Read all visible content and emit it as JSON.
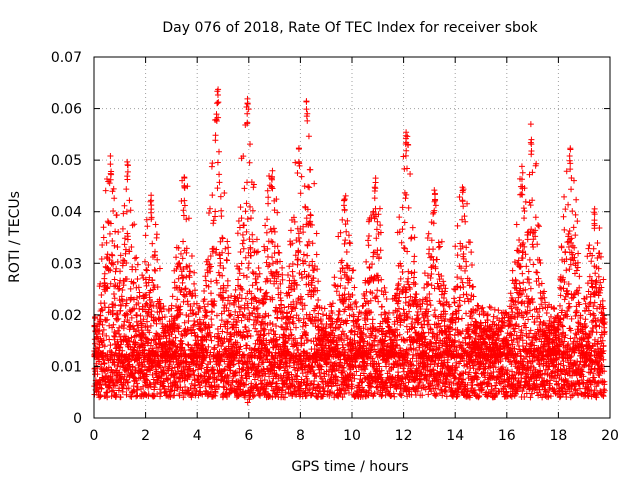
{
  "chart_data": {
    "type": "scatter",
    "title": "Day 076 of 2018, Rate Of TEC Index for receiver sbok",
    "xlabel": "GPS time / hours",
    "ylabel": "ROTI / TECUs",
    "xlim": [
      0,
      20
    ],
    "ylim": [
      0,
      0.07
    ],
    "x_ticks": [
      0,
      2,
      4,
      6,
      8,
      10,
      12,
      14,
      16,
      18,
      20
    ],
    "x_tick_labels": [
      "0",
      "2",
      "4",
      "6",
      "8",
      "10",
      "12",
      "14",
      "16",
      "18",
      "20"
    ],
    "y_ticks": [
      0,
      0.01,
      0.02,
      0.03,
      0.04,
      0.05,
      0.06,
      0.07
    ],
    "y_tick_labels": [
      "0",
      "0.01",
      "0.02",
      "0.03",
      "0.04",
      "0.05",
      "0.06",
      "0.07"
    ],
    "grid": true,
    "marker": "+",
    "series": [
      {
        "name": "ROTI",
        "color": "#ff0000",
        "x_range": [
          0,
          19.8
        ],
        "baseline_range": [
          0.004,
          0.012
        ],
        "peaks": [
          {
            "x": 0.65,
            "y": 0.051
          },
          {
            "x": 1.3,
            "y": 0.051
          },
          {
            "x": 2.2,
            "y": 0.044
          },
          {
            "x": 3.5,
            "y": 0.048
          },
          {
            "x": 4.8,
            "y": 0.064
          },
          {
            "x": 5.95,
            "y": 0.063
          },
          {
            "x": 6.9,
            "y": 0.05
          },
          {
            "x": 7.95,
            "y": 0.054
          },
          {
            "x": 8.25,
            "y": 0.062
          },
          {
            "x": 9.7,
            "y": 0.045
          },
          {
            "x": 10.9,
            "y": 0.048
          },
          {
            "x": 12.1,
            "y": 0.056
          },
          {
            "x": 13.2,
            "y": 0.045
          },
          {
            "x": 14.3,
            "y": 0.046
          },
          {
            "x": 16.95,
            "y": 0.057
          },
          {
            "x": 16.6,
            "y": 0.049
          },
          {
            "x": 18.45,
            "y": 0.053
          },
          {
            "x": 19.4,
            "y": 0.042
          }
        ]
      }
    ]
  }
}
